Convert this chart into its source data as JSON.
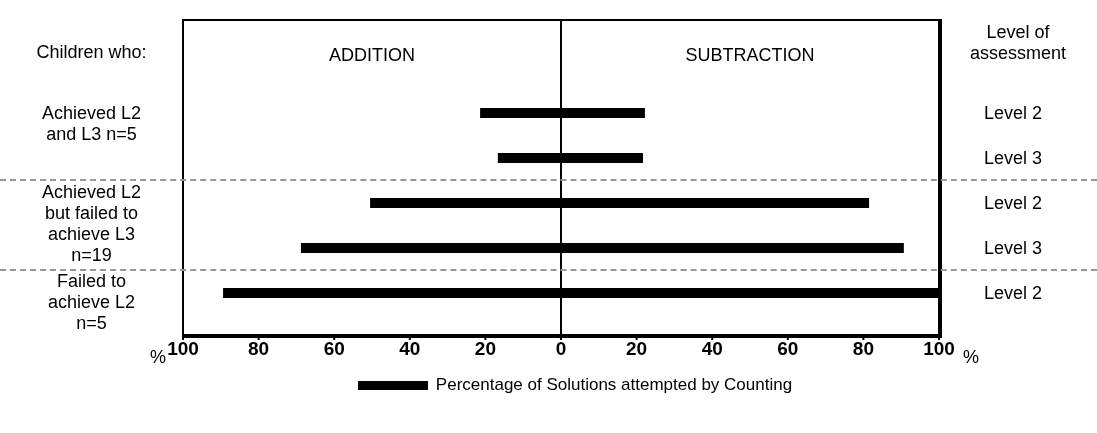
{
  "chart_data": {
    "type": "bar",
    "orientation": "horizontal",
    "categories": [
      "Level 2",
      "Level 3",
      "Level 2",
      "Level 3",
      "Level 2"
    ],
    "series": [
      {
        "name": "Percentage of Solutions attempted by Counting",
        "color": "#000000",
        "values": [
          43.6,
          38.4,
          132,
          159.5,
          189.4
        ],
        "base": [
          -21.4,
          -16.7,
          -50.5,
          -68.8,
          -89.4
        ]
      }
    ],
    "xlim": [
      -100,
      100
    ],
    "xticks": [
      {
        "value": -100,
        "label": "100"
      },
      {
        "value": -80,
        "label": "80"
      },
      {
        "value": -60,
        "label": "60"
      },
      {
        "value": -40,
        "label": "40"
      },
      {
        "value": -20,
        "label": "20"
      },
      0,
      20,
      40,
      60,
      80,
      100
    ],
    "ref_lines": [
      {
        "axis": "x",
        "value": 0,
        "color": "#000000",
        "line_style": "solid"
      }
    ],
    "annotations": [
      "ADDITION",
      "SUBTRACTION",
      "Children who:",
      "Level of assessment",
      "Achieved L2 and L3 n=5",
      "Achieved L2 but failed to achieve L3 n=19",
      "Failed to achieve L2 n=5",
      "%",
      "%"
    ],
    "legend": "bottom",
    "grid": false
  }
}
